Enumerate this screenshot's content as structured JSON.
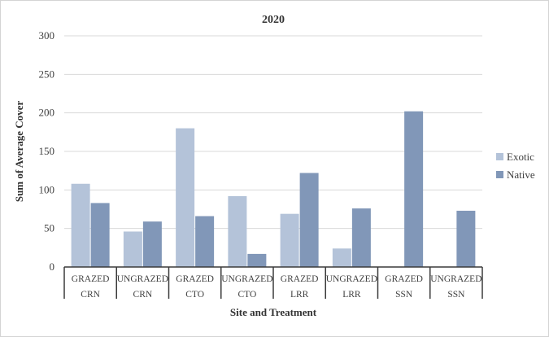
{
  "chart_data": {
    "type": "bar",
    "title": "2020",
    "xlabel": "Site and Treatment",
    "ylabel": "Sum of Average Cover",
    "ylim": [
      0,
      300
    ],
    "yticks": [
      0,
      50,
      100,
      150,
      200,
      250,
      300
    ],
    "grid": true,
    "legend_position": "right",
    "categories": [
      {
        "treatment": "GRAZED",
        "site": "CRN"
      },
      {
        "treatment": "UNGRAZED",
        "site": "CRN"
      },
      {
        "treatment": "GRAZED",
        "site": "CTO"
      },
      {
        "treatment": "UNGRAZED",
        "site": "CTO"
      },
      {
        "treatment": "GRAZED",
        "site": "LRR"
      },
      {
        "treatment": "UNGRAZED",
        "site": "LRR"
      },
      {
        "treatment": "GRAZED",
        "site": "SSN"
      },
      {
        "treatment": "UNGRAZED",
        "site": "SSN"
      }
    ],
    "series": [
      {
        "name": "Exotic",
        "color": "#b4c3d9",
        "values": [
          108,
          46,
          180,
          92,
          69,
          24,
          0,
          0
        ]
      },
      {
        "name": "Native",
        "color": "#8197b8",
        "values": [
          83,
          59,
          66,
          17,
          122,
          76,
          202,
          73
        ]
      }
    ]
  }
}
